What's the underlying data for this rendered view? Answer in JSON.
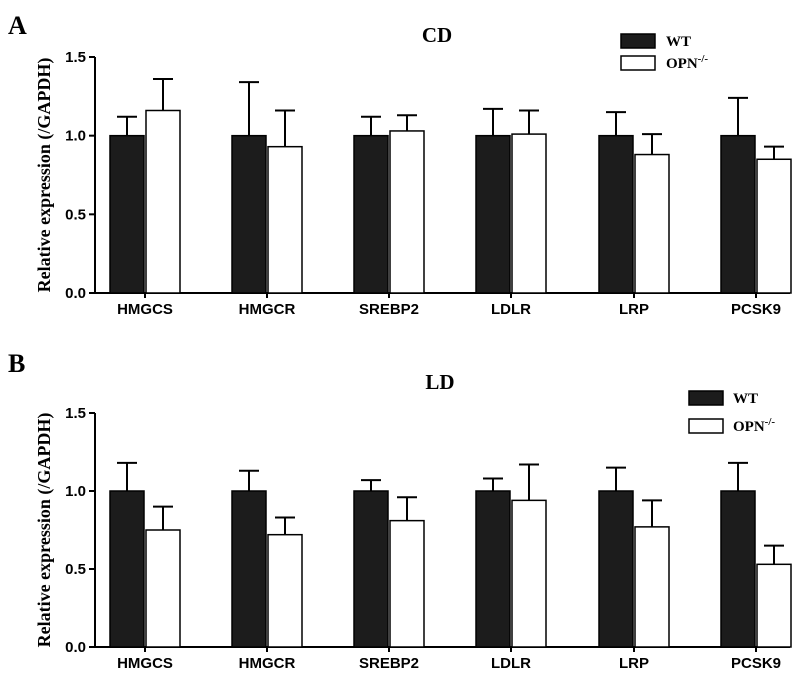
{
  "chart_data": [
    {
      "panel": "A",
      "type": "bar",
      "title": "CD",
      "ylabel": "Relative expression (/GAPDH)",
      "ylim": [
        0,
        1.5
      ],
      "yticks": [
        "0.0",
        "0.5",
        "1.0",
        "1.5"
      ],
      "yticks_values": [
        0,
        0.5,
        1.0,
        1.5
      ],
      "categories": [
        "HMGCS",
        "HMGCR",
        "SREBP2",
        "LDLR",
        "LRP",
        "PCSK9"
      ],
      "legend_position": "top-right",
      "series": [
        {
          "name": "WT",
          "color": "#1c1c1c",
          "values": [
            1.0,
            1.0,
            1.0,
            1.0,
            1.0,
            1.0
          ],
          "errors": [
            0.12,
            0.34,
            0.12,
            0.17,
            0.15,
            0.24
          ]
        },
        {
          "name": "OPN",
          "name_superscript": "-/-",
          "color": "#ffffff",
          "values": [
            1.16,
            0.93,
            1.03,
            1.01,
            0.88,
            0.85
          ],
          "errors": [
            0.2,
            0.23,
            0.1,
            0.15,
            0.13,
            0.08
          ]
        }
      ]
    },
    {
      "panel": "B",
      "type": "bar",
      "title": "LD",
      "ylabel": "Relative expression (/GAPDH)",
      "ylim": [
        0,
        1.5
      ],
      "yticks": [
        "0.0",
        "0.5",
        "1.0",
        "1.5"
      ],
      "yticks_values": [
        0,
        0.5,
        1.0,
        1.5
      ],
      "categories": [
        "HMGCS",
        "HMGCR",
        "SREBP2",
        "LDLR",
        "LRP",
        "PCSK9"
      ],
      "legend_position": "top-right",
      "series": [
        {
          "name": "WT",
          "color": "#1c1c1c",
          "values": [
            1.0,
            1.0,
            1.0,
            1.0,
            1.0,
            1.0
          ],
          "errors": [
            0.18,
            0.13,
            0.07,
            0.08,
            0.15,
            0.18
          ]
        },
        {
          "name": "OPN",
          "name_superscript": "-/-",
          "color": "#ffffff",
          "values": [
            0.75,
            0.72,
            0.81,
            0.94,
            0.77,
            0.53
          ],
          "errors": [
            0.15,
            0.11,
            0.15,
            0.23,
            0.17,
            0.12
          ]
        }
      ]
    }
  ]
}
